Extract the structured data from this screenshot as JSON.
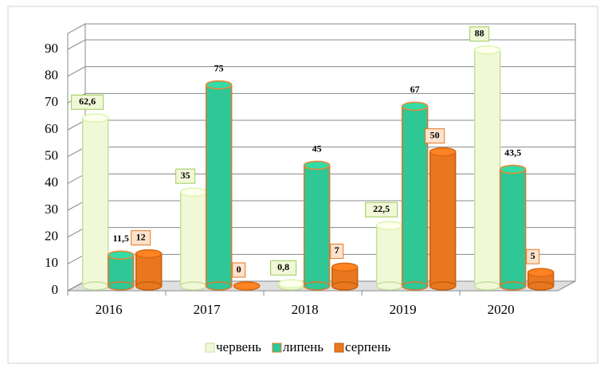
{
  "chart_data": {
    "type": "bar3d",
    "categories": [
      "2016",
      "2017",
      "2018",
      "2019",
      "2020"
    ],
    "series": [
      {
        "name": "червень",
        "color": "#f1f8d8",
        "values": [
          62.6,
          35,
          0.8,
          22.5,
          88
        ],
        "value_labels": [
          "62,6",
          "35",
          "0,8",
          "22,5",
          "88"
        ]
      },
      {
        "name": "липень",
        "color": "#2fc796",
        "values": [
          11.5,
          75,
          45,
          67,
          43.5
        ],
        "value_labels": [
          "11,5",
          "75",
          "45",
          "67",
          "43,5"
        ]
      },
      {
        "name": "серпень",
        "color": "#e8771f",
        "values": [
          12,
          0,
          7,
          50,
          5
        ],
        "value_labels": [
          "12",
          "0",
          "7",
          "50",
          "5"
        ]
      }
    ],
    "ylim": [
      0,
      90
    ],
    "yticks": [
      0,
      10,
      20,
      30,
      40,
      50,
      60,
      70,
      80,
      90
    ],
    "grid": true,
    "legend": "bottom"
  }
}
